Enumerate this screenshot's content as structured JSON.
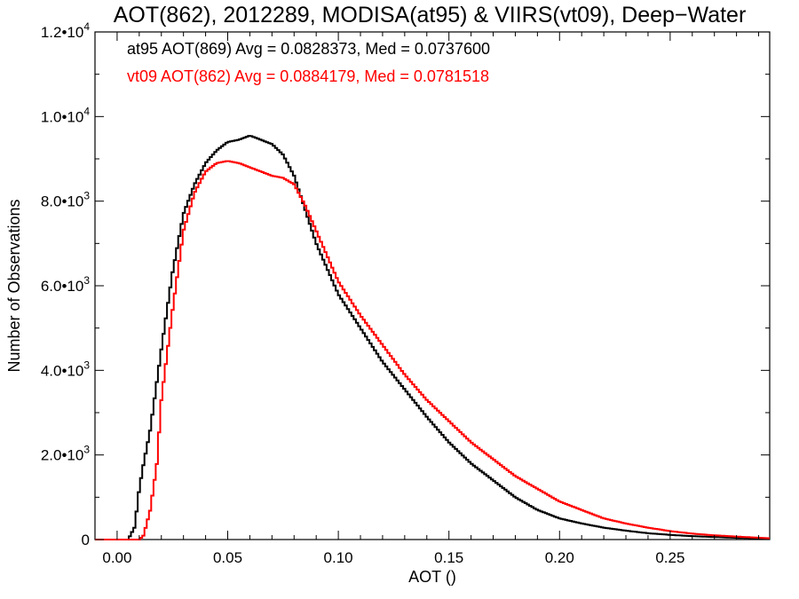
{
  "chart_data": {
    "type": "line",
    "title": "AOT(862), 2012289, MODISA(at95) & VIIRS(vt09), Deep−Water",
    "xlabel": "AOT ()",
    "ylabel": "Number of Observations",
    "xlim": [
      -0.01,
      0.295
    ],
    "ylim": [
      0,
      12000
    ],
    "x_ticks": [
      0.0,
      0.05,
      0.1,
      0.15,
      0.2,
      0.25
    ],
    "x_tick_labels": [
      "0.00",
      "0.05",
      "0.10",
      "0.15",
      "0.20",
      "0.25"
    ],
    "y_ticks": [
      0,
      2000,
      4000,
      6000,
      8000,
      10000,
      12000
    ],
    "y_tick_labels": [
      {
        "base": "0",
        "exp": ""
      },
      {
        "base": "2.0•10",
        "exp": "3"
      },
      {
        "base": "4.0•10",
        "exp": "3"
      },
      {
        "base": "6.0•10",
        "exp": "3"
      },
      {
        "base": "8.0•10",
        "exp": "3"
      },
      {
        "base": "1.0•10",
        "exp": "4"
      },
      {
        "base": "1.2•10",
        "exp": "4"
      }
    ],
    "legend": [
      "at95 AOT(869) Avg = 0.0828373, Med = 0.0737600",
      "vt09 AOT(862) Avg = 0.0884179, Med = 0.0781518"
    ],
    "legend_position": "top-left",
    "series": [
      {
        "color": "#000000",
        "x": [
          -0.01,
          0.005,
          0.008,
          0.01,
          0.012,
          0.015,
          0.02,
          0.025,
          0.03,
          0.035,
          0.04,
          0.045,
          0.05,
          0.055,
          0.06,
          0.065,
          0.07,
          0.075,
          0.08,
          0.085,
          0.09,
          0.095,
          0.1,
          0.11,
          0.12,
          0.13,
          0.14,
          0.15,
          0.16,
          0.17,
          0.18,
          0.19,
          0.2,
          0.21,
          0.22,
          0.23,
          0.24,
          0.25,
          0.26,
          0.27,
          0.28,
          0.295
        ],
        "y": [
          0,
          0,
          300,
          1200,
          1800,
          2600,
          4500,
          6300,
          7700,
          8400,
          8900,
          9200,
          9400,
          9450,
          9550,
          9450,
          9350,
          9100,
          8600,
          7800,
          7000,
          6400,
          5800,
          5000,
          4200,
          3550,
          2900,
          2300,
          1800,
          1400,
          1000,
          700,
          500,
          380,
          280,
          210,
          150,
          110,
          80,
          60,
          40,
          20
        ]
      },
      {
        "color": "#ff0000",
        "x": [
          -0.01,
          0.01,
          0.012,
          0.015,
          0.018,
          0.02,
          0.025,
          0.03,
          0.035,
          0.04,
          0.045,
          0.05,
          0.055,
          0.06,
          0.065,
          0.07,
          0.075,
          0.08,
          0.085,
          0.09,
          0.095,
          0.1,
          0.11,
          0.12,
          0.13,
          0.14,
          0.15,
          0.16,
          0.17,
          0.18,
          0.19,
          0.2,
          0.21,
          0.22,
          0.23,
          0.24,
          0.25,
          0.26,
          0.27,
          0.28,
          0.295
        ],
        "y": [
          0,
          0,
          100,
          700,
          1800,
          3300,
          5400,
          7300,
          8200,
          8700,
          8900,
          8950,
          8900,
          8800,
          8700,
          8600,
          8550,
          8400,
          7900,
          7300,
          6700,
          6100,
          5300,
          4600,
          3900,
          3300,
          2800,
          2300,
          1900,
          1500,
          1200,
          900,
          700,
          500,
          380,
          280,
          200,
          140,
          100,
          70,
          30
        ]
      }
    ]
  }
}
